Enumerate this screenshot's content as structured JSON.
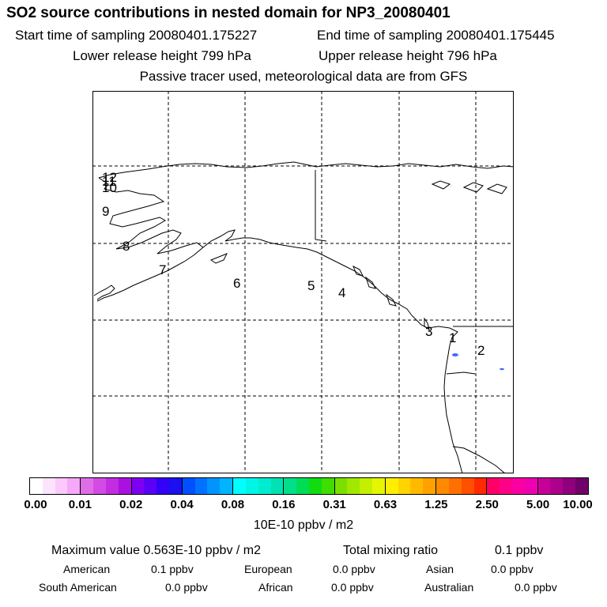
{
  "header": {
    "title": "SO2 source contributions in nested domain for NP3_20080401",
    "start_time": "Start time of sampling 20080401.175227",
    "end_time": "End time of sampling 20080401.175445",
    "lower_height": "Lower release height  799 hPa",
    "upper_height": "Upper release height  796 hPa",
    "tracer_note": "Passive tracer used, meteorological data are from GFS"
  },
  "map": {
    "source_labels": [
      "1",
      "2",
      "3",
      "4",
      "5",
      "6",
      "7",
      "8",
      "9",
      "10",
      "11",
      "12"
    ],
    "line_color": "#000000",
    "plume_color": "#3f6bff"
  },
  "colorbar": {
    "tick_labels": [
      "0.00",
      "0.01",
      "0.02",
      "0.04",
      "0.08",
      "0.16",
      "0.31",
      "0.63",
      "1.25",
      "2.50",
      "5.00",
      "10.00"
    ],
    "unit": "10E-10 ppbv / m2",
    "colors": [
      [
        "#ffffff",
        "#fde4fd",
        "#fbc9fb",
        "#f5a9f8"
      ],
      [
        "#e06de8",
        "#d24be4",
        "#c22de0",
        "#aa10e0"
      ],
      [
        "#7e00f0",
        "#5a00f5",
        "#3300f8",
        "#1a10f0"
      ],
      [
        "#0050ff",
        "#0072ff",
        "#0094ff",
        "#00b4ff"
      ],
      [
        "#00ffff",
        "#00f5e6",
        "#00ecd0",
        "#00e2b4"
      ],
      [
        "#00e08a",
        "#00dd55",
        "#10dc10",
        "#3fdd00"
      ],
      [
        "#7be000",
        "#a0e800",
        "#c4ef00",
        "#e6f500"
      ],
      [
        "#ffee00",
        "#ffd400",
        "#ffba00",
        "#ffa200"
      ],
      [
        "#ff8a00",
        "#ff7000",
        "#ff5000",
        "#ff2a00"
      ],
      [
        "#ff0066",
        "#ff0088",
        "#fa00a0",
        "#ef00b0"
      ],
      [
        "#c8009a",
        "#ad008c",
        "#90007c",
        "#70006a"
      ]
    ]
  },
  "stats": {
    "max_label": "Maximum value  0.563E-10 ppbv / m2",
    "total_label": "Total mixing ratio",
    "total_value": "0.1 ppbv",
    "regions": [
      {
        "name": "American",
        "value": "0.1 ppbv"
      },
      {
        "name": "European",
        "value": "0.0 ppbv"
      },
      {
        "name": "Asian",
        "value": "0.0 ppbv"
      },
      {
        "name": "South American",
        "value": "0.0 ppbv"
      },
      {
        "name": "African",
        "value": "0.0 ppbv"
      },
      {
        "name": "Australian",
        "value": "0.0 ppbv"
      }
    ]
  }
}
